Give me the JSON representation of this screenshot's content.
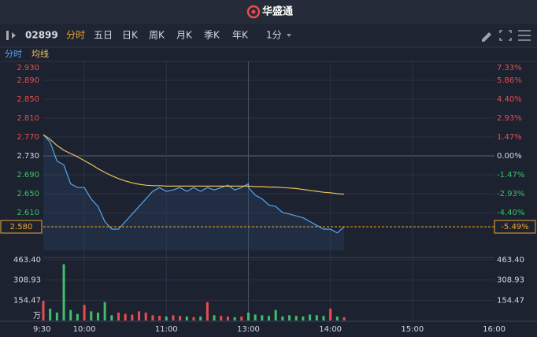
{
  "header": {
    "title": "华盛通"
  },
  "toolbar": {
    "code": "02899",
    "tabs": [
      "分时",
      "五日",
      "日K",
      "周K",
      "月K",
      "季K",
      "年K"
    ],
    "active_tab": 0,
    "interval": "1分"
  },
  "chart_data": [
    {
      "type": "line",
      "x": [
        "9:30",
        "9:35",
        "9:40",
        "9:45",
        "9:50",
        "9:55",
        "10:00",
        "10:05",
        "10:10",
        "10:15",
        "10:20",
        "10:25",
        "10:30",
        "10:35",
        "10:40",
        "10:45",
        "10:50",
        "10:55",
        "11:00",
        "11:05",
        "11:10",
        "11:15",
        "11:20",
        "11:25",
        "11:30",
        "11:35",
        "11:40",
        "11:45",
        "11:50",
        "11:55",
        "12:00",
        "13:00",
        "13:05",
        "13:10",
        "13:15",
        "13:20",
        "13:25",
        "13:30",
        "13:35",
        "13:40",
        "13:45",
        "13:50",
        "13:55",
        "14:00",
        "14:05",
        "14:10"
      ],
      "series": [
        {
          "name": "分时",
          "color": "#5aa6ee",
          "values": [
            2.775,
            2.759,
            2.719,
            2.711,
            2.671,
            2.663,
            2.663,
            2.639,
            2.623,
            2.591,
            2.575,
            2.575,
            2.591,
            2.607,
            2.623,
            2.639,
            2.655,
            2.663,
            2.655,
            2.658,
            2.663,
            2.655,
            2.663,
            2.655,
            2.663,
            2.658,
            2.663,
            2.668,
            2.658,
            2.663,
            2.671,
            2.663,
            2.647,
            2.639,
            2.626,
            2.623,
            2.61,
            2.607,
            2.603,
            2.599,
            2.591,
            2.583,
            2.575,
            2.575,
            2.567,
            2.58
          ]
        },
        {
          "name": "均线",
          "color": "#e8c15a",
          "values": [
            2.775,
            2.765,
            2.752,
            2.742,
            2.735,
            2.728,
            2.72,
            2.712,
            2.703,
            2.695,
            2.688,
            2.682,
            2.677,
            2.673,
            2.67,
            2.668,
            2.667,
            2.667,
            2.666,
            2.666,
            2.666,
            2.666,
            2.666,
            2.666,
            2.666,
            2.666,
            2.666,
            2.666,
            2.666,
            2.666,
            2.666,
            2.666,
            2.665,
            2.665,
            2.664,
            2.664,
            2.663,
            2.662,
            2.661,
            2.659,
            2.657,
            2.655,
            2.653,
            2.652,
            2.65,
            2.649
          ]
        }
      ],
      "ylim": [
        2.53,
        2.93
      ],
      "yticks": [
        {
          "value": 2.93,
          "label": "2.930"
        },
        {
          "value": 2.89,
          "label": "2.890"
        },
        {
          "value": 2.85,
          "label": "2.850"
        },
        {
          "value": 2.81,
          "label": "2.810"
        },
        {
          "value": 2.77,
          "label": "2.770"
        },
        {
          "value": 2.73,
          "label": "2.730"
        },
        {
          "value": 2.69,
          "label": "2.690"
        },
        {
          "value": 2.65,
          "label": "2.650"
        },
        {
          "value": 2.61,
          "label": "2.610"
        }
      ],
      "y2lim": [
        -7.33,
        7.33
      ],
      "y2ticks": [
        {
          "value": 7.33,
          "label": "7.33%"
        },
        {
          "value": 5.86,
          "label": "5.86%"
        },
        {
          "value": 4.4,
          "label": "4.40%"
        },
        {
          "value": 2.93,
          "label": "2.93%"
        },
        {
          "value": 1.47,
          "label": "1.47%"
        },
        {
          "value": 0,
          "label": "0.00%"
        },
        {
          "value": -1.47,
          "label": "-1.47%"
        },
        {
          "value": -2.93,
          "label": "-2.93%"
        },
        {
          "value": -4.4,
          "label": "-4.40%"
        }
      ],
      "base": 2.73,
      "last": {
        "value": 2.58,
        "label": "2.580"
      },
      "last_change": {
        "value": -5.49,
        "label": "-5.49%"
      },
      "grid": true
    },
    {
      "type": "bar",
      "x": [
        "9:30",
        "9:35",
        "9:40",
        "9:45",
        "9:50",
        "9:55",
        "10:00",
        "10:05",
        "10:10",
        "10:15",
        "10:20",
        "10:25",
        "10:30",
        "10:35",
        "10:40",
        "10:45",
        "10:50",
        "10:55",
        "11:00",
        "11:05",
        "11:10",
        "11:15",
        "11:20",
        "11:25",
        "11:30",
        "11:35",
        "11:40",
        "11:45",
        "11:50",
        "11:55",
        "12:00",
        "13:00",
        "13:05",
        "13:10",
        "13:15",
        "13:20",
        "13:25",
        "13:30",
        "13:35",
        "13:40",
        "13:45",
        "13:50",
        "13:55",
        "14:00",
        "14:05",
        "14:10"
      ],
      "values": [
        150,
        90,
        60,
        430,
        80,
        50,
        120,
        70,
        60,
        140,
        40,
        60,
        50,
        45,
        70,
        60,
        40,
        35,
        30,
        40,
        35,
        30,
        25,
        30,
        140,
        40,
        35,
        30,
        25,
        30,
        50,
        60,
        45,
        40,
        35,
        80,
        30,
        40,
        35,
        30,
        45,
        40,
        35,
        90,
        30,
        25
      ],
      "up_color": "#e84d4d",
      "down_color": "#3fbf6b",
      "ylim": [
        0,
        463.4
      ],
      "yticks": [
        {
          "value": 154.47,
          "label": "154.47"
        },
        {
          "value": 308.93,
          "label": "308.93"
        },
        {
          "value": 463.4,
          "label": "463.40"
        }
      ],
      "unit": "万",
      "x_labels": [
        "9:30",
        "10:00",
        "11:00",
        "13:00",
        "14:00",
        "15:00",
        "16:00"
      ]
    }
  ]
}
